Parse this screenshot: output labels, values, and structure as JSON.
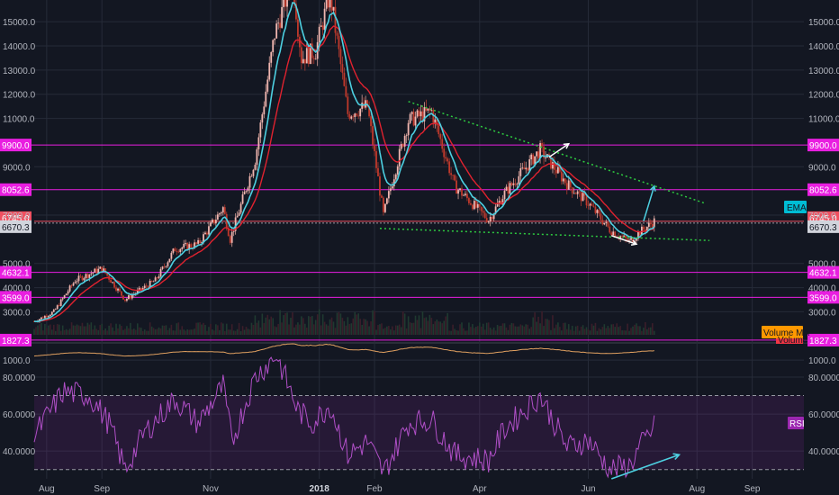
{
  "chart_data": [
    {
      "type": "candlestick",
      "title": "",
      "x_range": [
        "2017-07-25",
        "2018-09-30"
      ],
      "ylim": [
        1750,
        15900
      ],
      "grid": true,
      "date_ticks": [
        {
          "date": "2017-08-01",
          "label": "Aug",
          "bold": false
        },
        {
          "date": "2017-09-01",
          "label": "Sep",
          "bold": false
        },
        {
          "date": "2017-11-01",
          "label": "Nov",
          "bold": false
        },
        {
          "date": "2018-01-01",
          "label": "2018",
          "bold": true
        },
        {
          "date": "2018-02-01",
          "label": "Feb",
          "bold": false
        },
        {
          "date": "2018-04-01",
          "label": "Apr",
          "bold": false
        },
        {
          "date": "2018-06-01",
          "label": "Jun",
          "bold": false
        },
        {
          "date": "2018-08-01",
          "label": "Aug",
          "bold": false
        },
        {
          "date": "2018-09-01",
          "label": "Sep",
          "bold": false
        }
      ],
      "y_ticks": [
        {
          "value": 15000,
          "label": "15000.0"
        },
        {
          "value": 14000,
          "label": "14000.0"
        },
        {
          "value": 13000,
          "label": "13000.0"
        },
        {
          "value": 12000,
          "label": "12000.0"
        },
        {
          "value": 11000,
          "label": "11000.0"
        },
        {
          "value": 9000,
          "label": "9000.0"
        },
        {
          "value": 7000,
          "label": "7000.0"
        },
        {
          "value": 5000,
          "label": "5000.0"
        },
        {
          "value": 4000,
          "label": "4000.0"
        },
        {
          "value": 3000,
          "label": "3000.0"
        },
        {
          "value": 1000,
          "label": "1000.0"
        }
      ],
      "levels": [
        {
          "value": 9900,
          "label": "9900.0"
        },
        {
          "value": 8052.6,
          "label": "8052.6"
        },
        {
          "value": 4632.1,
          "label": "4632.1"
        },
        {
          "value": 3599.0,
          "label": "3599.0"
        },
        {
          "value": 1827.3,
          "label": "1827.3"
        }
      ],
      "price_tags": [
        {
          "value": 6745.0,
          "label": "6745.0"
        },
        {
          "value": 6670.3,
          "label": "6670.3"
        }
      ],
      "price_series": [
        {
          "date": "2017-07-25",
          "value": 2600
        },
        {
          "date": "2017-08-05",
          "value": 3000
        },
        {
          "date": "2017-08-17",
          "value": 4300
        },
        {
          "date": "2017-09-01",
          "value": 4800
        },
        {
          "date": "2017-09-14",
          "value": 3500
        },
        {
          "date": "2017-10-01",
          "value": 4300
        },
        {
          "date": "2017-10-12",
          "value": 5600
        },
        {
          "date": "2017-10-25",
          "value": 5800
        },
        {
          "date": "2017-11-08",
          "value": 7300
        },
        {
          "date": "2017-11-12",
          "value": 6000
        },
        {
          "date": "2017-11-26",
          "value": 9300
        },
        {
          "date": "2017-12-07",
          "value": 14500
        },
        {
          "date": "2017-12-17",
          "value": 16800
        },
        {
          "date": "2017-12-22",
          "value": 13500
        },
        {
          "date": "2017-12-30",
          "value": 13800
        },
        {
          "date": "2018-01-07",
          "value": 16200
        },
        {
          "date": "2018-01-17",
          "value": 11200
        },
        {
          "date": "2018-01-28",
          "value": 11500
        },
        {
          "date": "2018-02-06",
          "value": 7000
        },
        {
          "date": "2018-02-20",
          "value": 10900
        },
        {
          "date": "2018-03-05",
          "value": 11300
        },
        {
          "date": "2018-03-18",
          "value": 8200
        },
        {
          "date": "2018-04-06",
          "value": 6800
        },
        {
          "date": "2018-04-15",
          "value": 7900
        },
        {
          "date": "2018-05-05",
          "value": 9700
        },
        {
          "date": "2018-05-20",
          "value": 8300
        },
        {
          "date": "2018-06-01",
          "value": 7500
        },
        {
          "date": "2018-06-13",
          "value": 6400
        },
        {
          "date": "2018-06-24",
          "value": 5900
        },
        {
          "date": "2018-06-30",
          "value": 6300
        },
        {
          "date": "2018-07-08",
          "value": 6745
        }
      ],
      "indicators": {
        "ema_label": "EMA",
        "volume_ma_label": "Volume MA",
        "volume_label": "Volume",
        "volume_ma_level": 1000
      },
      "annotations": [
        {
          "kind": "trendline",
          "style": "dotted",
          "from": {
            "date": "2018-02-20",
            "value": 11700
          },
          "to": {
            "date": "2018-08-05",
            "value": 7500
          }
        },
        {
          "kind": "trendline",
          "style": "dotted",
          "from": {
            "date": "2018-02-04",
            "value": 6450
          },
          "to": {
            "date": "2018-08-08",
            "value": 5950
          }
        },
        {
          "kind": "arrow",
          "from": {
            "date": "2018-05-10",
            "value": 9400
          },
          "to": {
            "date": "2018-05-21",
            "value": 9950
          }
        },
        {
          "kind": "arrow",
          "from": {
            "date": "2018-06-14",
            "value": 6150
          },
          "to": {
            "date": "2018-06-28",
            "value": 5800
          }
        },
        {
          "kind": "arrow",
          "from": {
            "date": "2018-07-02",
            "value": 6750
          },
          "to": {
            "date": "2018-07-08",
            "value": 8200
          }
        }
      ]
    },
    {
      "type": "line",
      "title": "",
      "series_label": "RSI",
      "ylim": [
        25,
        98
      ],
      "band": [
        30,
        70
      ],
      "y_ticks": [
        {
          "value": 80,
          "label": "80.0000"
        },
        {
          "value": 60,
          "label": "60.0000"
        },
        {
          "value": 40,
          "label": "40.0000"
        }
      ],
      "rsi_series": [
        {
          "date": "2017-07-25",
          "value": 48
        },
        {
          "date": "2017-08-10",
          "value": 72
        },
        {
          "date": "2017-08-25",
          "value": 70
        },
        {
          "date": "2017-09-05",
          "value": 55
        },
        {
          "date": "2017-09-14",
          "value": 30
        },
        {
          "date": "2017-09-25",
          "value": 50
        },
        {
          "date": "2017-10-12",
          "value": 68
        },
        {
          "date": "2017-10-25",
          "value": 55
        },
        {
          "date": "2017-11-08",
          "value": 75
        },
        {
          "date": "2017-11-13",
          "value": 45
        },
        {
          "date": "2017-11-26",
          "value": 80
        },
        {
          "date": "2017-12-08",
          "value": 92
        },
        {
          "date": "2017-12-20",
          "value": 62
        },
        {
          "date": "2017-12-28",
          "value": 55
        },
        {
          "date": "2018-01-07",
          "value": 65
        },
        {
          "date": "2018-01-17",
          "value": 38
        },
        {
          "date": "2018-01-28",
          "value": 45
        },
        {
          "date": "2018-02-06",
          "value": 28
        },
        {
          "date": "2018-02-20",
          "value": 55
        },
        {
          "date": "2018-03-05",
          "value": 57
        },
        {
          "date": "2018-03-18",
          "value": 38
        },
        {
          "date": "2018-04-06",
          "value": 35
        },
        {
          "date": "2018-04-15",
          "value": 52
        },
        {
          "date": "2018-05-05",
          "value": 70
        },
        {
          "date": "2018-05-20",
          "value": 42
        },
        {
          "date": "2018-06-01",
          "value": 46
        },
        {
          "date": "2018-06-13",
          "value": 30
        },
        {
          "date": "2018-06-24",
          "value": 32
        },
        {
          "date": "2018-06-30",
          "value": 42
        },
        {
          "date": "2018-07-08",
          "value": 53
        }
      ],
      "annotations": [
        {
          "kind": "arrow",
          "from": {
            "date": "2018-06-14",
            "value": 25
          },
          "to": {
            "date": "2018-07-22",
            "value": 38
          }
        }
      ]
    }
  ]
}
